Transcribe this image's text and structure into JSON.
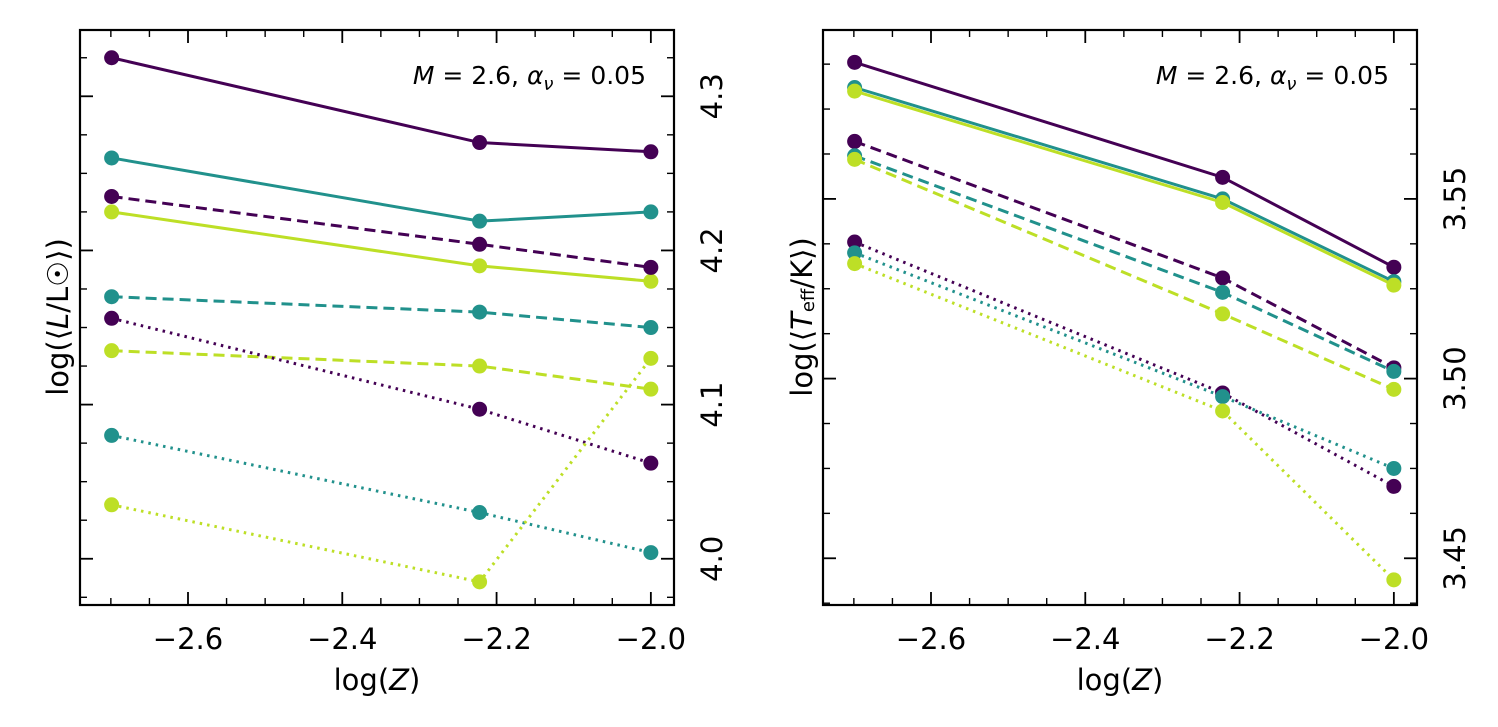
{
  "chart_data": [
    {
      "type": "line",
      "annotation": "M = 2.6, α_ν = 0.05",
      "xlabel": "log(Z)",
      "ylabel": "log(⟨L/L☉⟩)",
      "xlim": [
        -2.74,
        -1.97
      ],
      "ylim": [
        3.97,
        4.343
      ],
      "x_ticks": [
        -2.6,
        -2.4,
        -2.2,
        -2.0
      ],
      "x_tick_labels": [
        "−2.6",
        "−2.4",
        "−2.2",
        "−2.0"
      ],
      "y_ticks": [
        4.0,
        4.1,
        4.2,
        4.3
      ],
      "y_tick_labels": [
        "4.0",
        "4.1",
        "4.2",
        "4.3"
      ],
      "y_axis_side": "right",
      "grid": false,
      "x": [
        -2.699,
        -2.222,
        -2.0
      ],
      "series": [
        {
          "color": "#440154",
          "linestyle": "solid",
          "values": [
            4.325,
            4.27,
            4.264
          ]
        },
        {
          "color": "#21918c",
          "linestyle": "solid",
          "values": [
            4.26,
            4.219,
            4.225
          ]
        },
        {
          "color": "#bddf26",
          "linestyle": "solid",
          "values": [
            4.225,
            4.19,
            4.18
          ]
        },
        {
          "color": "#440154",
          "linestyle": "dashed",
          "values": [
            4.235,
            4.204,
            4.189
          ]
        },
        {
          "color": "#21918c",
          "linestyle": "dashed",
          "values": [
            4.17,
            4.16,
            4.15
          ]
        },
        {
          "color": "#bddf26",
          "linestyle": "dashed",
          "values": [
            4.135,
            4.125,
            4.11
          ]
        },
        {
          "color": "#440154",
          "linestyle": "dotted",
          "values": [
            4.156,
            4.097,
            4.062
          ]
        },
        {
          "color": "#21918c",
          "linestyle": "dotted",
          "values": [
            4.08,
            4.03,
            4.004
          ]
        },
        {
          "color": "#bddf26",
          "linestyle": "dotted",
          "values": [
            4.035,
            3.985,
            4.13
          ]
        }
      ]
    },
    {
      "type": "line",
      "annotation": "M = 2.6, α_ν = 0.05",
      "xlabel": "log(Z)",
      "ylabel": "log(⟨T_eff/K⟩)",
      "xlim": [
        -2.74,
        -1.97
      ],
      "ylim": [
        3.437,
        3.597
      ],
      "x_ticks": [
        -2.6,
        -2.4,
        -2.2,
        -2.0
      ],
      "x_tick_labels": [
        "−2.6",
        "−2.4",
        "−2.2",
        "−2.0"
      ],
      "y_ticks": [
        3.45,
        3.5,
        3.55
      ],
      "y_tick_labels": [
        "3.45",
        "3.50",
        "3.55"
      ],
      "y_axis_side": "right",
      "grid": false,
      "x": [
        -2.699,
        -2.222,
        -2.0
      ],
      "series": [
        {
          "color": "#440154",
          "linestyle": "solid",
          "values": [
            3.588,
            3.556,
            3.531
          ]
        },
        {
          "color": "#21918c",
          "linestyle": "solid",
          "values": [
            3.581,
            3.55,
            3.527
          ]
        },
        {
          "color": "#bddf26",
          "linestyle": "solid",
          "values": [
            3.58,
            3.549,
            3.526
          ]
        },
        {
          "color": "#440154",
          "linestyle": "dashed",
          "values": [
            3.566,
            3.528,
            3.503
          ]
        },
        {
          "color": "#21918c",
          "linestyle": "dashed",
          "values": [
            3.562,
            3.524,
            3.502
          ]
        },
        {
          "color": "#bddf26",
          "linestyle": "dashed",
          "values": [
            3.561,
            3.518,
            3.497
          ]
        },
        {
          "color": "#440154",
          "linestyle": "dotted",
          "values": [
            3.538,
            3.496,
            3.47
          ]
        },
        {
          "color": "#21918c",
          "linestyle": "dotted",
          "values": [
            3.535,
            3.495,
            3.475
          ]
        },
        {
          "color": "#bddf26",
          "linestyle": "dotted",
          "values": [
            3.532,
            3.491,
            3.444
          ]
        }
      ]
    }
  ]
}
